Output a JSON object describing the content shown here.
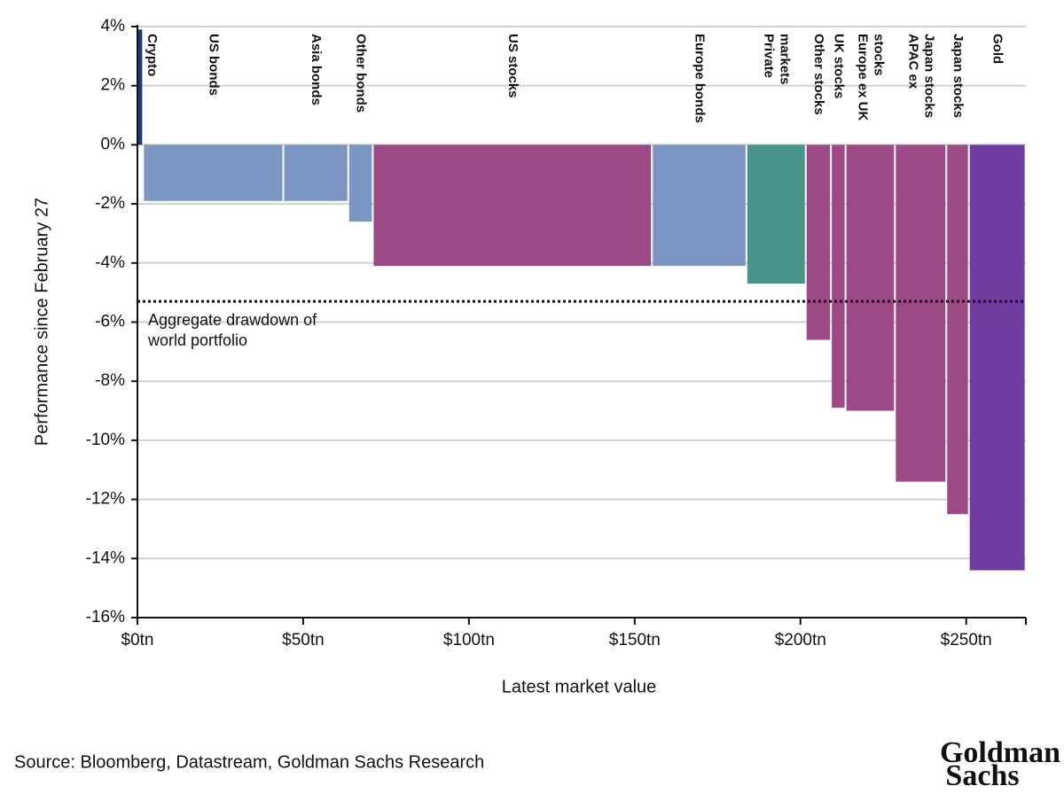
{
  "chart_data": {
    "type": "variwide-bar",
    "ylabel": "Performance since February 27",
    "xlabel": "Latest market value",
    "categories": [
      [
        "Crypto"
      ],
      [
        "US bonds"
      ],
      [
        "Asia bonds"
      ],
      [
        "Other bonds"
      ],
      [
        "US stocks"
      ],
      [
        "Europe bonds"
      ],
      [
        "Private",
        "markets"
      ],
      [
        "Other stocks"
      ],
      [
        "UK stocks"
      ],
      [
        "Europe ex UK",
        "stocks"
      ],
      [
        "APAC ex",
        "Japan stocks"
      ],
      [
        "Japan stocks"
      ],
      [
        "Gold"
      ]
    ],
    "widths": [
      1.7,
      42.3,
      19.6,
      7.4,
      84.2,
      28.5,
      17.9,
      7.6,
      4.4,
      14.9,
      15.5,
      6.8,
      17.1
    ],
    "values": [
      3.9,
      -1.9,
      -1.9,
      -2.6,
      -4.1,
      -4.1,
      -4.7,
      -6.6,
      -8.9,
      -9.0,
      -11.4,
      -12.5,
      -14.4
    ],
    "colors": [
      "#1f3a6e",
      "#7b96c2",
      "#7b96c2",
      "#7b96c2",
      "#9b4a86",
      "#7b96c2",
      "#47958a",
      "#9b4a86",
      "#9b4a86",
      "#9b4a86",
      "#9b4a86",
      "#9b4a86",
      "#6f3da0"
    ],
    "reference": {
      "value": -5.3,
      "label": [
        "Aggregate drawdown of",
        "world portfolio"
      ]
    },
    "xlim": [
      0,
      268
    ],
    "ylim": [
      -16,
      4
    ],
    "xticks": [
      {
        "value": 0,
        "label": "$0tn"
      },
      {
        "value": 50,
        "label": "$50tn"
      },
      {
        "value": 100,
        "label": "$100tn"
      },
      {
        "value": 150,
        "label": "$150tn"
      },
      {
        "value": 200,
        "label": "$200tn"
      },
      {
        "value": 250,
        "label": "$250tn"
      }
    ],
    "yticks": [
      {
        "value": -16,
        "label": "-16%"
      },
      {
        "value": -14,
        "label": "-14%"
      },
      {
        "value": -12,
        "label": "-12%"
      },
      {
        "value": -10,
        "label": "-10%"
      },
      {
        "value": -8,
        "label": "-8%"
      },
      {
        "value": -6,
        "label": "-6%"
      },
      {
        "value": -4,
        "label": "-4%"
      },
      {
        "value": -2,
        "label": "-2%"
      },
      {
        "value": 0,
        "label": "0%"
      },
      {
        "value": 2,
        "label": "2%"
      },
      {
        "value": 4,
        "label": "4%"
      }
    ],
    "grid": true,
    "source": "Source: Bloomberg, Datastream, Goldman Sachs Research",
    "logo": [
      "Goldman",
      "Sachs"
    ]
  }
}
